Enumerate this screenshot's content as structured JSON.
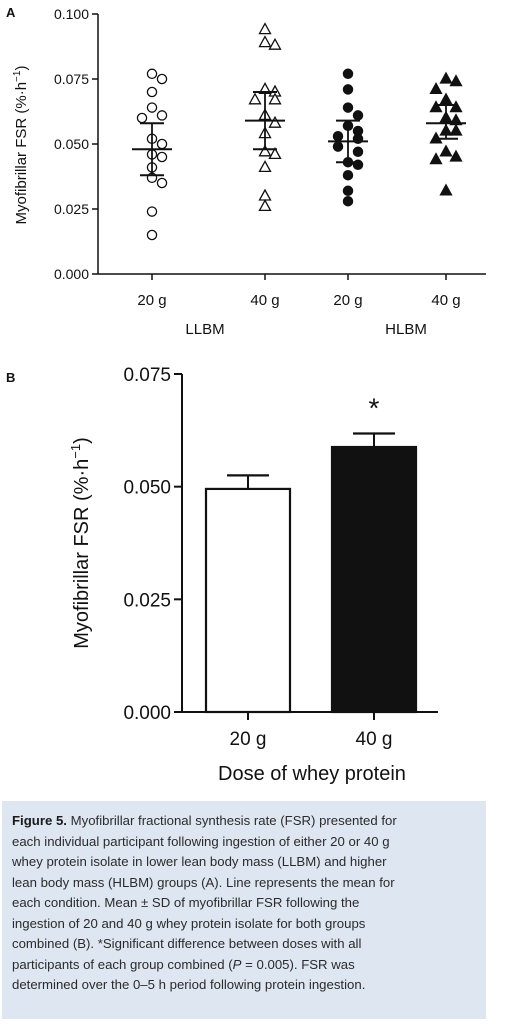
{
  "colors": {
    "axis": "#111111",
    "open_fill": "#ffffff",
    "solid_fill": "#111111",
    "caption_bg": "#dde6f1"
  },
  "chart_data": [
    {
      "panel": "A",
      "type": "scatter",
      "ylabel": "Myofibrillar FSR (%·h",
      "ylabel_sup": "−1",
      "ylabel_close": ")",
      "ylim": [
        0,
        0.1
      ],
      "yticks": [
        "0.000",
        "0.025",
        "0.050",
        "0.075",
        "0.100"
      ],
      "ytick_values": [
        0,
        0.025,
        0.05,
        0.075,
        0.1
      ],
      "categories": [
        "20 g",
        "40 g",
        "20 g",
        "40 g"
      ],
      "group_labels": [
        "LLBM",
        "HLBM"
      ],
      "series": [
        {
          "marker": "open-circle",
          "mean": 0.048,
          "sd_upper": 0.058,
          "sd_lower": 0.038,
          "values": [
            0.077,
            0.075,
            0.07,
            0.064,
            0.061,
            0.06,
            0.052,
            0.05,
            0.046,
            0.045,
            0.041,
            0.037,
            0.035,
            0.024,
            0.015
          ]
        },
        {
          "marker": "open-triangle",
          "mean": 0.059,
          "sd_upper": 0.07,
          "sd_lower": 0.048,
          "values": [
            0.094,
            0.089,
            0.088,
            0.071,
            0.07,
            0.067,
            0.067,
            0.061,
            0.058,
            0.054,
            0.047,
            0.046,
            0.041,
            0.03,
            0.026
          ]
        },
        {
          "marker": "filled-circle",
          "mean": 0.051,
          "sd_upper": 0.059,
          "sd_lower": 0.043,
          "values": [
            0.077,
            0.071,
            0.064,
            0.061,
            0.057,
            0.055,
            0.053,
            0.052,
            0.049,
            0.047,
            0.043,
            0.042,
            0.038,
            0.032,
            0.028
          ]
        },
        {
          "marker": "filled-triangle",
          "mean": 0.058,
          "sd_upper": 0.065,
          "sd_lower": 0.052,
          "values": [
            0.075,
            0.074,
            0.071,
            0.067,
            0.064,
            0.064,
            0.06,
            0.059,
            0.055,
            0.055,
            0.052,
            0.047,
            0.045,
            0.044,
            0.032
          ]
        }
      ]
    },
    {
      "panel": "B",
      "type": "bar",
      "ylabel": "Myofibrillar FSR (%·h",
      "ylabel_sup": "−1",
      "ylabel_close": ")",
      "xlabel": "Dose of whey protein",
      "ylim": [
        0,
        0.075
      ],
      "yticks": [
        "0.000",
        "0.025",
        "0.050",
        "0.075"
      ],
      "ytick_values": [
        0,
        0.025,
        0.05,
        0.075
      ],
      "categories": [
        "20 g",
        "40 g"
      ],
      "values": [
        0.0495,
        0.0588
      ],
      "sd": [
        0.003,
        0.003
      ],
      "fills": [
        "#ffffff",
        "#111111"
      ],
      "annotation": "*"
    }
  ],
  "caption": {
    "lead": "Figure 5.",
    "line1": "Myofibrillar fractional synthesis rate (FSR) presented for",
    "line2": "each individual participant following ingestion of either 20 or 40 g",
    "line3": "whey protein isolate in lower lean body mass (LLBM) and higher",
    "line4": "lean body mass (HLBM) groups (A). Line represents the mean for",
    "line5": "each condition. Mean ± SD of myofibrillar FSR following the",
    "line6": "ingestion of 20 and 40 g whey protein isolate for both groups",
    "line7": "combined (B). *Significant difference between doses with all",
    "line8a": "participants of each group combined (",
    "line8p": "P",
    "line8b": " = 0.005). FSR was",
    "line9": "determined over the 0–5 h period following protein ingestion."
  }
}
